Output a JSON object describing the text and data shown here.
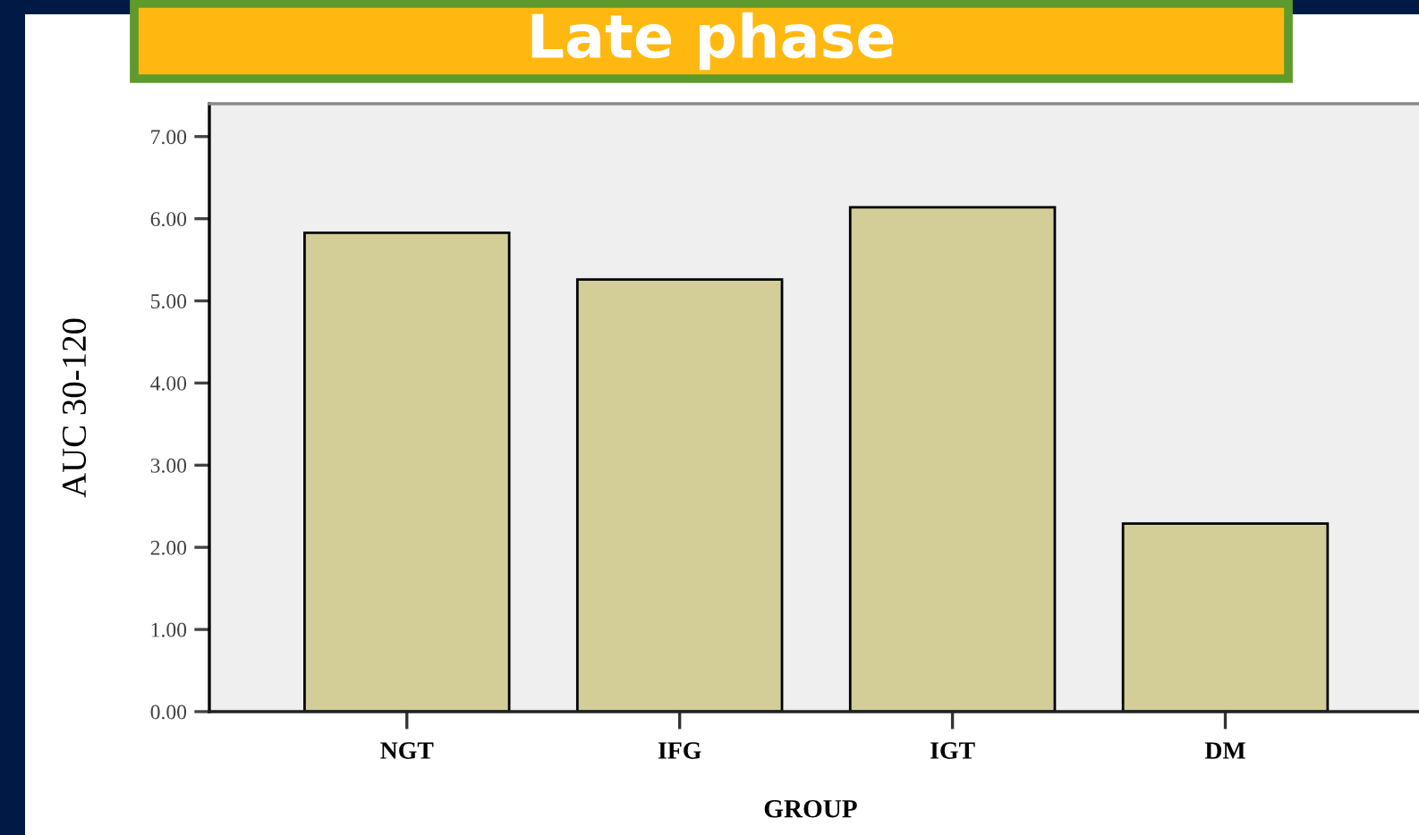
{
  "chart_data": {
    "type": "bar",
    "title": "Late phase",
    "xlabel": "GROUP",
    "ylabel": "AUC 30-120",
    "categories": [
      "NGT",
      "IFG",
      "IGT",
      "DM"
    ],
    "values": [
      5.83,
      5.26,
      6.14,
      2.29
    ],
    "color": "#d3ce98",
    "ylim": [
      0,
      7.4
    ],
    "yticks": [
      {
        "value": 0,
        "label": "0.00"
      },
      {
        "value": 1,
        "label": "1.00"
      },
      {
        "value": 2,
        "label": "2.00"
      },
      {
        "value": 3,
        "label": "3.00"
      },
      {
        "value": 4,
        "label": "4.00"
      },
      {
        "value": 5,
        "label": "5.00"
      },
      {
        "value": 6,
        "label": "6.00"
      },
      {
        "value": 7,
        "label": "7.00"
      }
    ]
  }
}
